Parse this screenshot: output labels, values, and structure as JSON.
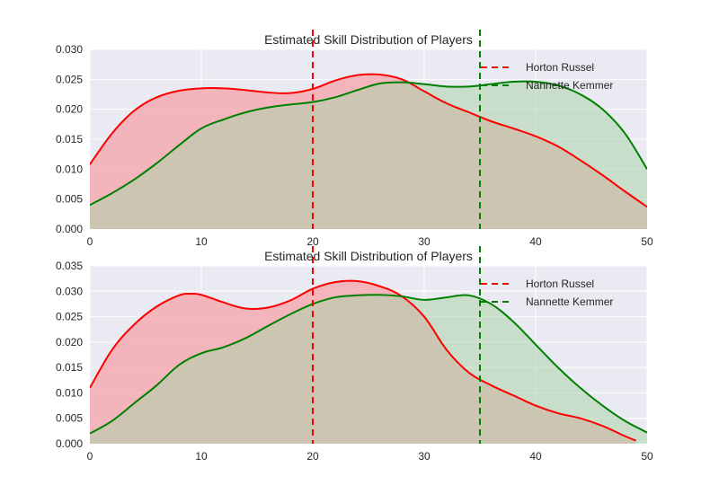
{
  "chart_data": [
    {
      "type": "area",
      "title": "Estimated Skill Distribution of Players",
      "xlim": [
        0,
        50
      ],
      "ylim": [
        0,
        0.03
      ],
      "xticks": [
        "0",
        "10",
        "20",
        "30",
        "40",
        "50"
      ],
      "yticks": [
        "0.000",
        "0.005",
        "0.010",
        "0.015",
        "0.020",
        "0.025",
        "0.030"
      ],
      "grid": true,
      "legend_position": "top-right",
      "legend": [
        "Horton Russel",
        "Nannette Kemmer"
      ],
      "vlines": [
        {
          "x": 20,
          "color": "#ff0000",
          "style": "dashed",
          "label": "Horton Russel"
        },
        {
          "x": 35,
          "color": "#008000",
          "style": "dashed",
          "label": "Nannette Kemmer"
        }
      ],
      "series": [
        {
          "name": "Horton Russel",
          "line_color": "#ff0000",
          "fill_color": "#f4aab2",
          "x": [
            0,
            2,
            4,
            6,
            8,
            10,
            12,
            14,
            16,
            18,
            20,
            22,
            24,
            26,
            28,
            30,
            32,
            34,
            36,
            38,
            40,
            42,
            44,
            46,
            48,
            50
          ],
          "values": [
            0.0108,
            0.016,
            0.0198,
            0.022,
            0.0231,
            0.0235,
            0.0235,
            0.0232,
            0.0228,
            0.0227,
            0.0234,
            0.0248,
            0.0257,
            0.0258,
            0.025,
            0.023,
            0.021,
            0.0195,
            0.018,
            0.0168,
            0.0155,
            0.0138,
            0.0115,
            0.009,
            0.0063,
            0.0037
          ]
        },
        {
          "name": "Nannette Kemmer",
          "line_color": "#008000",
          "fill_color": "#acd3ac",
          "x": [
            0,
            2,
            4,
            6,
            8,
            10,
            12,
            14,
            16,
            18,
            20,
            22,
            24,
            26,
            28,
            30,
            32,
            34,
            36,
            38,
            40,
            42,
            44,
            46,
            48,
            50
          ],
          "values": [
            0.004,
            0.006,
            0.0083,
            0.011,
            0.014,
            0.0168,
            0.0183,
            0.0195,
            0.0203,
            0.0208,
            0.0212,
            0.022,
            0.0232,
            0.0243,
            0.0245,
            0.0242,
            0.0238,
            0.0238,
            0.0242,
            0.0246,
            0.0246,
            0.024,
            0.0225,
            0.02,
            0.016,
            0.01
          ]
        }
      ]
    },
    {
      "type": "area",
      "title": "Estimated Skill Distribution of Players",
      "xlim": [
        0,
        50
      ],
      "ylim": [
        0,
        0.035
      ],
      "xticks": [
        "0",
        "10",
        "20",
        "30",
        "40",
        "50"
      ],
      "yticks": [
        "0.000",
        "0.005",
        "0.010",
        "0.015",
        "0.020",
        "0.025",
        "0.030",
        "0.035"
      ],
      "grid": true,
      "legend_position": "top-right",
      "legend": [
        "Horton Russel",
        "Nannette Kemmer"
      ],
      "vlines": [
        {
          "x": 20,
          "color": "#ff0000",
          "style": "dashed",
          "label": "Horton Russel"
        },
        {
          "x": 35,
          "color": "#008000",
          "style": "dashed",
          "label": "Nannette Kemmer"
        }
      ],
      "series": [
        {
          "name": "Horton Russel",
          "line_color": "#ff0000",
          "fill_color": "#f4aab2",
          "x": [
            0,
            2,
            4,
            6,
            8,
            9,
            10,
            12,
            14,
            16,
            18,
            20,
            22,
            24,
            26,
            28,
            30,
            32,
            34,
            36,
            38,
            40,
            42,
            44,
            46,
            48,
            49
          ],
          "values": [
            0.011,
            0.0185,
            0.0235,
            0.027,
            0.0292,
            0.0295,
            0.0293,
            0.0278,
            0.0266,
            0.0268,
            0.0282,
            0.0305,
            0.0318,
            0.032,
            0.031,
            0.029,
            0.025,
            0.0185,
            0.014,
            0.0115,
            0.0095,
            0.0075,
            0.006,
            0.005,
            0.0035,
            0.0015,
            0.0006
          ]
        },
        {
          "name": "Nannette Kemmer",
          "line_color": "#008000",
          "fill_color": "#acd3ac",
          "x": [
            0,
            2,
            4,
            6,
            8,
            10,
            12,
            14,
            16,
            18,
            20,
            22,
            24,
            26,
            28,
            30,
            32,
            34,
            36,
            38,
            40,
            42,
            44,
            46,
            48,
            50
          ],
          "values": [
            0.002,
            0.0045,
            0.008,
            0.0115,
            0.0155,
            0.0178,
            0.019,
            0.0208,
            0.0232,
            0.0255,
            0.0275,
            0.0288,
            0.0292,
            0.0293,
            0.029,
            0.0283,
            0.0288,
            0.0292,
            0.0275,
            0.024,
            0.0195,
            0.015,
            0.011,
            0.0075,
            0.0045,
            0.0022
          ]
        }
      ]
    }
  ]
}
